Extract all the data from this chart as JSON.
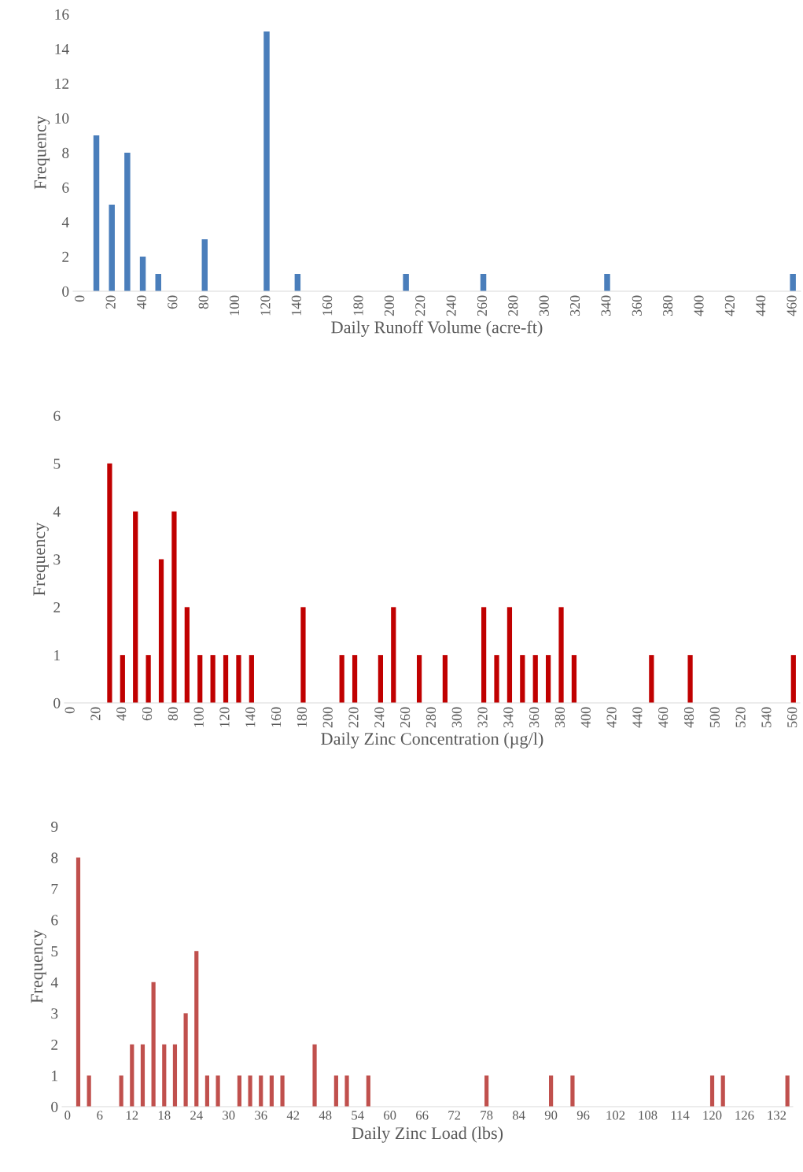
{
  "chart_data": [
    {
      "type": "bar",
      "xlabel": "Daily Runoff Volume (acre-ft)",
      "ylabel": "Frequency",
      "color": "#4a7ebb",
      "categories": [
        "0",
        null,
        "20",
        null,
        "40",
        null,
        "60",
        null,
        "80",
        null,
        "100",
        null,
        "120",
        null,
        "140",
        null,
        "160",
        null,
        "180",
        null,
        "200",
        null,
        "220",
        null,
        "240",
        null,
        "260",
        null,
        "280",
        null,
        "300",
        null,
        "320",
        null,
        "340",
        null,
        "360",
        null,
        "380",
        null,
        "400",
        null,
        "420",
        null,
        "440",
        null,
        "460"
      ],
      "values": [
        0,
        9,
        5,
        8,
        2,
        1,
        0,
        0,
        3,
        0,
        0,
        0,
        15,
        0,
        1,
        0,
        0,
        0,
        0,
        0,
        0,
        1,
        0,
        0,
        0,
        0,
        1,
        0,
        0,
        0,
        0,
        0,
        0,
        0,
        1,
        0,
        0,
        0,
        0,
        0,
        0,
        0,
        0,
        0,
        0,
        0,
        1
      ],
      "ylim": [
        0,
        16
      ],
      "yticks": [
        0,
        2,
        4,
        6,
        8,
        10,
        12,
        14,
        16
      ],
      "grid": false,
      "legend": false
    },
    {
      "type": "bar",
      "xlabel": "Daily Zinc Concentration (µg/l)",
      "ylabel": "Frequency",
      "color": "#c00000",
      "categories": [
        "0",
        null,
        "20",
        null,
        "40",
        null,
        "60",
        null,
        "80",
        null,
        "100",
        null,
        "120",
        null,
        "140",
        null,
        "160",
        null,
        "180",
        null,
        "200",
        null,
        "220",
        null,
        "240",
        null,
        "260",
        null,
        "280",
        null,
        "300",
        null,
        "320",
        null,
        "340",
        null,
        "360",
        null,
        "380",
        null,
        "400",
        null,
        "420",
        null,
        "440",
        null,
        "460",
        null,
        "480",
        null,
        "500",
        null,
        "520",
        null,
        "540",
        null,
        "560"
      ],
      "values": [
        0,
        0,
        0,
        5,
        1,
        4,
        1,
        3,
        4,
        2,
        1,
        1,
        1,
        1,
        1,
        0,
        0,
        0,
        2,
        0,
        0,
        1,
        1,
        0,
        1,
        2,
        0,
        1,
        0,
        1,
        0,
        0,
        2,
        1,
        2,
        1,
        1,
        1,
        2,
        1,
        0,
        0,
        0,
        0,
        0,
        1,
        0,
        0,
        1,
        0,
        0,
        0,
        0,
        0,
        0,
        0,
        1
      ],
      "ylim": [
        0,
        6
      ],
      "yticks": [
        0,
        1,
        2,
        3,
        4,
        5,
        6
      ],
      "grid": false,
      "legend": false
    },
    {
      "type": "bar",
      "xlabel": "Daily Zinc Load (lbs)",
      "ylabel": "Frequency",
      "color": "#c0504d",
      "categories": [
        "0",
        null,
        null,
        "6",
        null,
        null,
        "12",
        null,
        null,
        "18",
        null,
        null,
        "24",
        null,
        null,
        "30",
        null,
        null,
        "36",
        null,
        null,
        "42",
        null,
        null,
        "48",
        null,
        null,
        "54",
        null,
        null,
        "60",
        null,
        null,
        "66",
        null,
        null,
        "72",
        null,
        null,
        "78",
        null,
        null,
        "84",
        null,
        null,
        "90",
        null,
        null,
        "96",
        null,
        null,
        "102",
        null,
        null,
        "108",
        null,
        null,
        "114",
        null,
        null,
        "120",
        null,
        null,
        "126",
        null,
        null,
        "132",
        null
      ],
      "values": [
        0,
        8,
        1,
        0,
        0,
        1,
        2,
        2,
        4,
        2,
        2,
        3,
        5,
        1,
        1,
        0,
        1,
        1,
        1,
        1,
        1,
        0,
        0,
        2,
        0,
        1,
        1,
        0,
        1,
        0,
        0,
        0,
        0,
        0,
        0,
        0,
        0,
        0,
        0,
        1,
        0,
        0,
        0,
        0,
        0,
        1,
        0,
        1,
        0,
        0,
        0,
        0,
        0,
        0,
        0,
        0,
        0,
        0,
        0,
        0,
        1,
        1,
        0,
        0,
        0,
        0,
        0,
        1
      ],
      "ylim": [
        0,
        9
      ],
      "yticks": [
        0,
        1,
        2,
        3,
        4,
        5,
        6,
        7,
        8,
        9
      ],
      "grid": false,
      "legend": false
    }
  ]
}
